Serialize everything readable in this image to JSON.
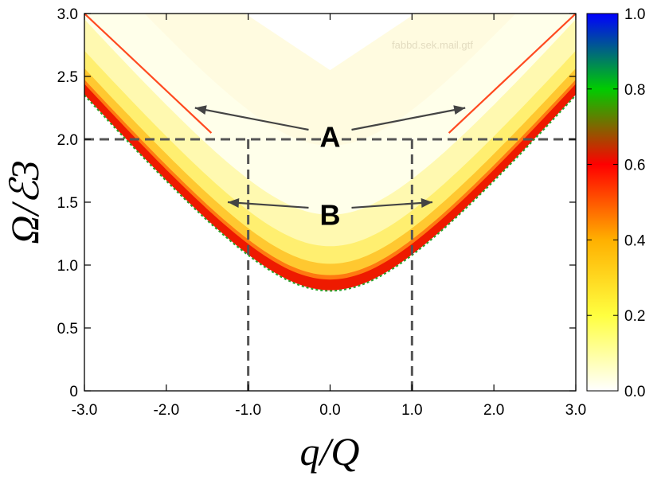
{
  "chart_data": {
    "type": "heatmap",
    "xlabel": "q/Q",
    "ylabel": "Ω/ℰ3",
    "xlim": [
      -3.0,
      3.0
    ],
    "ylim": [
      0,
      3.0
    ],
    "x_ticks": [
      "-3.0",
      "-2.0",
      "-1.0",
      "0.0",
      "1.0",
      "2.0",
      "3.0"
    ],
    "y_ticks": [
      "0",
      "0.5",
      "1.0",
      "1.5",
      "2.0",
      "2.5",
      "3.0"
    ],
    "colorbar": {
      "range": [
        0.0,
        1.0
      ],
      "ticks": [
        "0.0",
        "0.2",
        "0.4",
        "0.6",
        "0.8",
        "1.0"
      ],
      "colors": [
        "#ffffff",
        "#ffff40",
        "#ffb000",
        "#ff0000",
        "#00cc00",
        "#0000ff"
      ]
    },
    "reference_lines": [
      {
        "type": "horizontal",
        "y": 2.0,
        "style": "dashed"
      },
      {
        "type": "vertical",
        "x": -1.0,
        "style": "dashed"
      },
      {
        "type": "vertical",
        "x": 1.0,
        "style": "dashed"
      }
    ],
    "branch_minimum": {
      "x": 0.0,
      "y": 0.85
    },
    "branch_asymptotic_slope": 0.75,
    "annotations": [
      {
        "label": "A",
        "text_at": {
          "x": 0.0,
          "y": 2.0
        },
        "arrows_to": [
          {
            "x": -1.65,
            "y": 2.25
          },
          {
            "x": 1.65,
            "y": 2.25
          }
        ]
      },
      {
        "label": "B",
        "text_at": {
          "x": 0.0,
          "y": 1.38
        },
        "arrows_to": [
          {
            "x": -1.25,
            "y": 1.5
          },
          {
            "x": 1.25,
            "y": 1.5
          }
        ]
      }
    ],
    "watermark": "fabbd.sek.mail.gtf"
  }
}
